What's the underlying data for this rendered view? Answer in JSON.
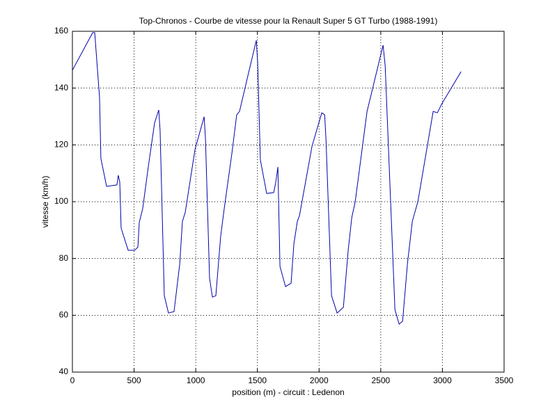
{
  "chart_data": {
    "type": "line",
    "title": "Top-Chronos - Courbe de vitesse pour la Renault Super 5 GT Turbo (1988-1991)",
    "x_label": "position (m) - circuit : Ledenon",
    "y_label": "vitesse (km/h)",
    "x": [
      0,
      164,
      181,
      220,
      231,
      277,
      361,
      372,
      384,
      395,
      452,
      503,
      531,
      542,
      570,
      615,
      666,
      700,
      711,
      745,
      779,
      824,
      870,
      892,
      915,
      994,
      1068,
      1079,
      1112,
      1135,
      1163,
      1202,
      1231,
      1293,
      1332,
      1355,
      1428,
      1491,
      1502,
      1524,
      1575,
      1632,
      1649,
      1666,
      1683,
      1728,
      1773,
      1796,
      1824,
      1841,
      1943,
      2022,
      2045,
      2056,
      2101,
      2146,
      2197,
      2236,
      2265,
      2293,
      2389,
      2519,
      2536,
      2615,
      2649,
      2677,
      2717,
      2756,
      2801,
      2925,
      2959,
      2993,
      3151
    ],
    "series": [
      {
        "name": "vitesse",
        "color": "#0000aa",
        "values": [
          146.3,
          159.5,
          159.5,
          136.7,
          115.2,
          105.4,
          105.9,
          109.3,
          106.9,
          90.7,
          82.9,
          82.9,
          84,
          92.7,
          97.6,
          112.2,
          127.7,
          132.3,
          125,
          66.9,
          60.8,
          61.3,
          78,
          93.1,
          96.3,
          118.4,
          129.9,
          122,
          73.1,
          66.4,
          66.9,
          87.8,
          97.6,
          117,
          130.6,
          131.8,
          145.3,
          156.8,
          149,
          114.7,
          102.9,
          103.2,
          106.9,
          112.2,
          77.2,
          70.1,
          71.3,
          85.3,
          93.1,
          95.1,
          119.6,
          131.3,
          130.6,
          122,
          66.9,
          60.8,
          62.8,
          82.9,
          94.4,
          100,
          131.8,
          155.1,
          147.8,
          62,
          56.9,
          57.9,
          78.4,
          93.1,
          100,
          131.8,
          131.3,
          134.3,
          145.8
        ]
      }
    ],
    "xlim": [
      0,
      3500
    ],
    "xticks": [
      0,
      500,
      1000,
      1500,
      2000,
      2500,
      3000,
      3500
    ],
    "ylim": [
      40,
      160
    ],
    "yticks": [
      40,
      60,
      80,
      100,
      120,
      140,
      160
    ],
    "grid": true
  }
}
